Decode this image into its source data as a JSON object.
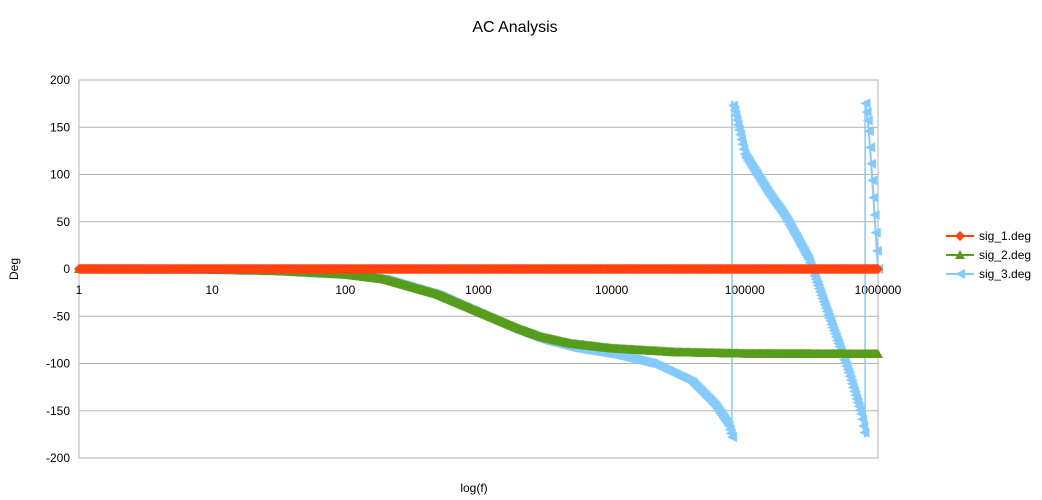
{
  "chart_data": {
    "type": "line",
    "title": "AC Analysis",
    "xlabel": "log(f)",
    "ylabel": "Deg",
    "x_scale": "log",
    "xlim": [
      1,
      1000000
    ],
    "ylim": [
      -200,
      200
    ],
    "x_ticks": [
      "1",
      "10",
      "100",
      "1000",
      "10000",
      "100000",
      "1000000"
    ],
    "y_ticks": [
      "200",
      "150",
      "100",
      "50",
      "0",
      "-50",
      "-100",
      "-150",
      "-200"
    ],
    "grid": true,
    "legend_position": "right",
    "series": [
      {
        "name": "sig_1.deg",
        "color": "#ff420e",
        "marker": "diamond",
        "x": [
          1,
          10,
          100,
          1000,
          10000,
          100000,
          1000000
        ],
        "values": [
          0,
          0,
          0,
          0,
          0,
          0,
          0
        ]
      },
      {
        "name": "sig_2.deg",
        "color": "#579d1c",
        "marker": "triangle",
        "x": [
          1,
          3,
          10,
          30,
          100,
          200,
          500,
          1000,
          2000,
          3000,
          5000,
          10000,
          30000,
          100000,
          1000000
        ],
        "values": [
          0,
          -0.2,
          -0.6,
          -2,
          -5.7,
          -11,
          -27,
          -45,
          -63,
          -72,
          -79,
          -84,
          -88,
          -89.5,
          -90
        ]
      },
      {
        "name": "sig_3.deg",
        "color": "#83caff",
        "marker": "arrow",
        "x": [
          1,
          3,
          10,
          30,
          100,
          200,
          500,
          1000,
          2000,
          3000,
          5000,
          10000,
          20000,
          40000,
          60000,
          75000,
          80000,
          80001,
          100000,
          150000,
          200000,
          300000,
          400000,
          600000,
          750000,
          800000,
          800001,
          850000,
          900000,
          950000,
          1000000
        ],
        "values": [
          0,
          -0.2,
          -0.6,
          -2,
          -6,
          -11.5,
          -28,
          -47,
          -66,
          -75,
          -83,
          -90,
          -100,
          -120,
          -145,
          -165,
          -178,
          178,
          120,
          80,
          55,
          10,
          -40,
          -110,
          -155,
          -178,
          178,
          150,
          100,
          50,
          0
        ]
      }
    ]
  }
}
